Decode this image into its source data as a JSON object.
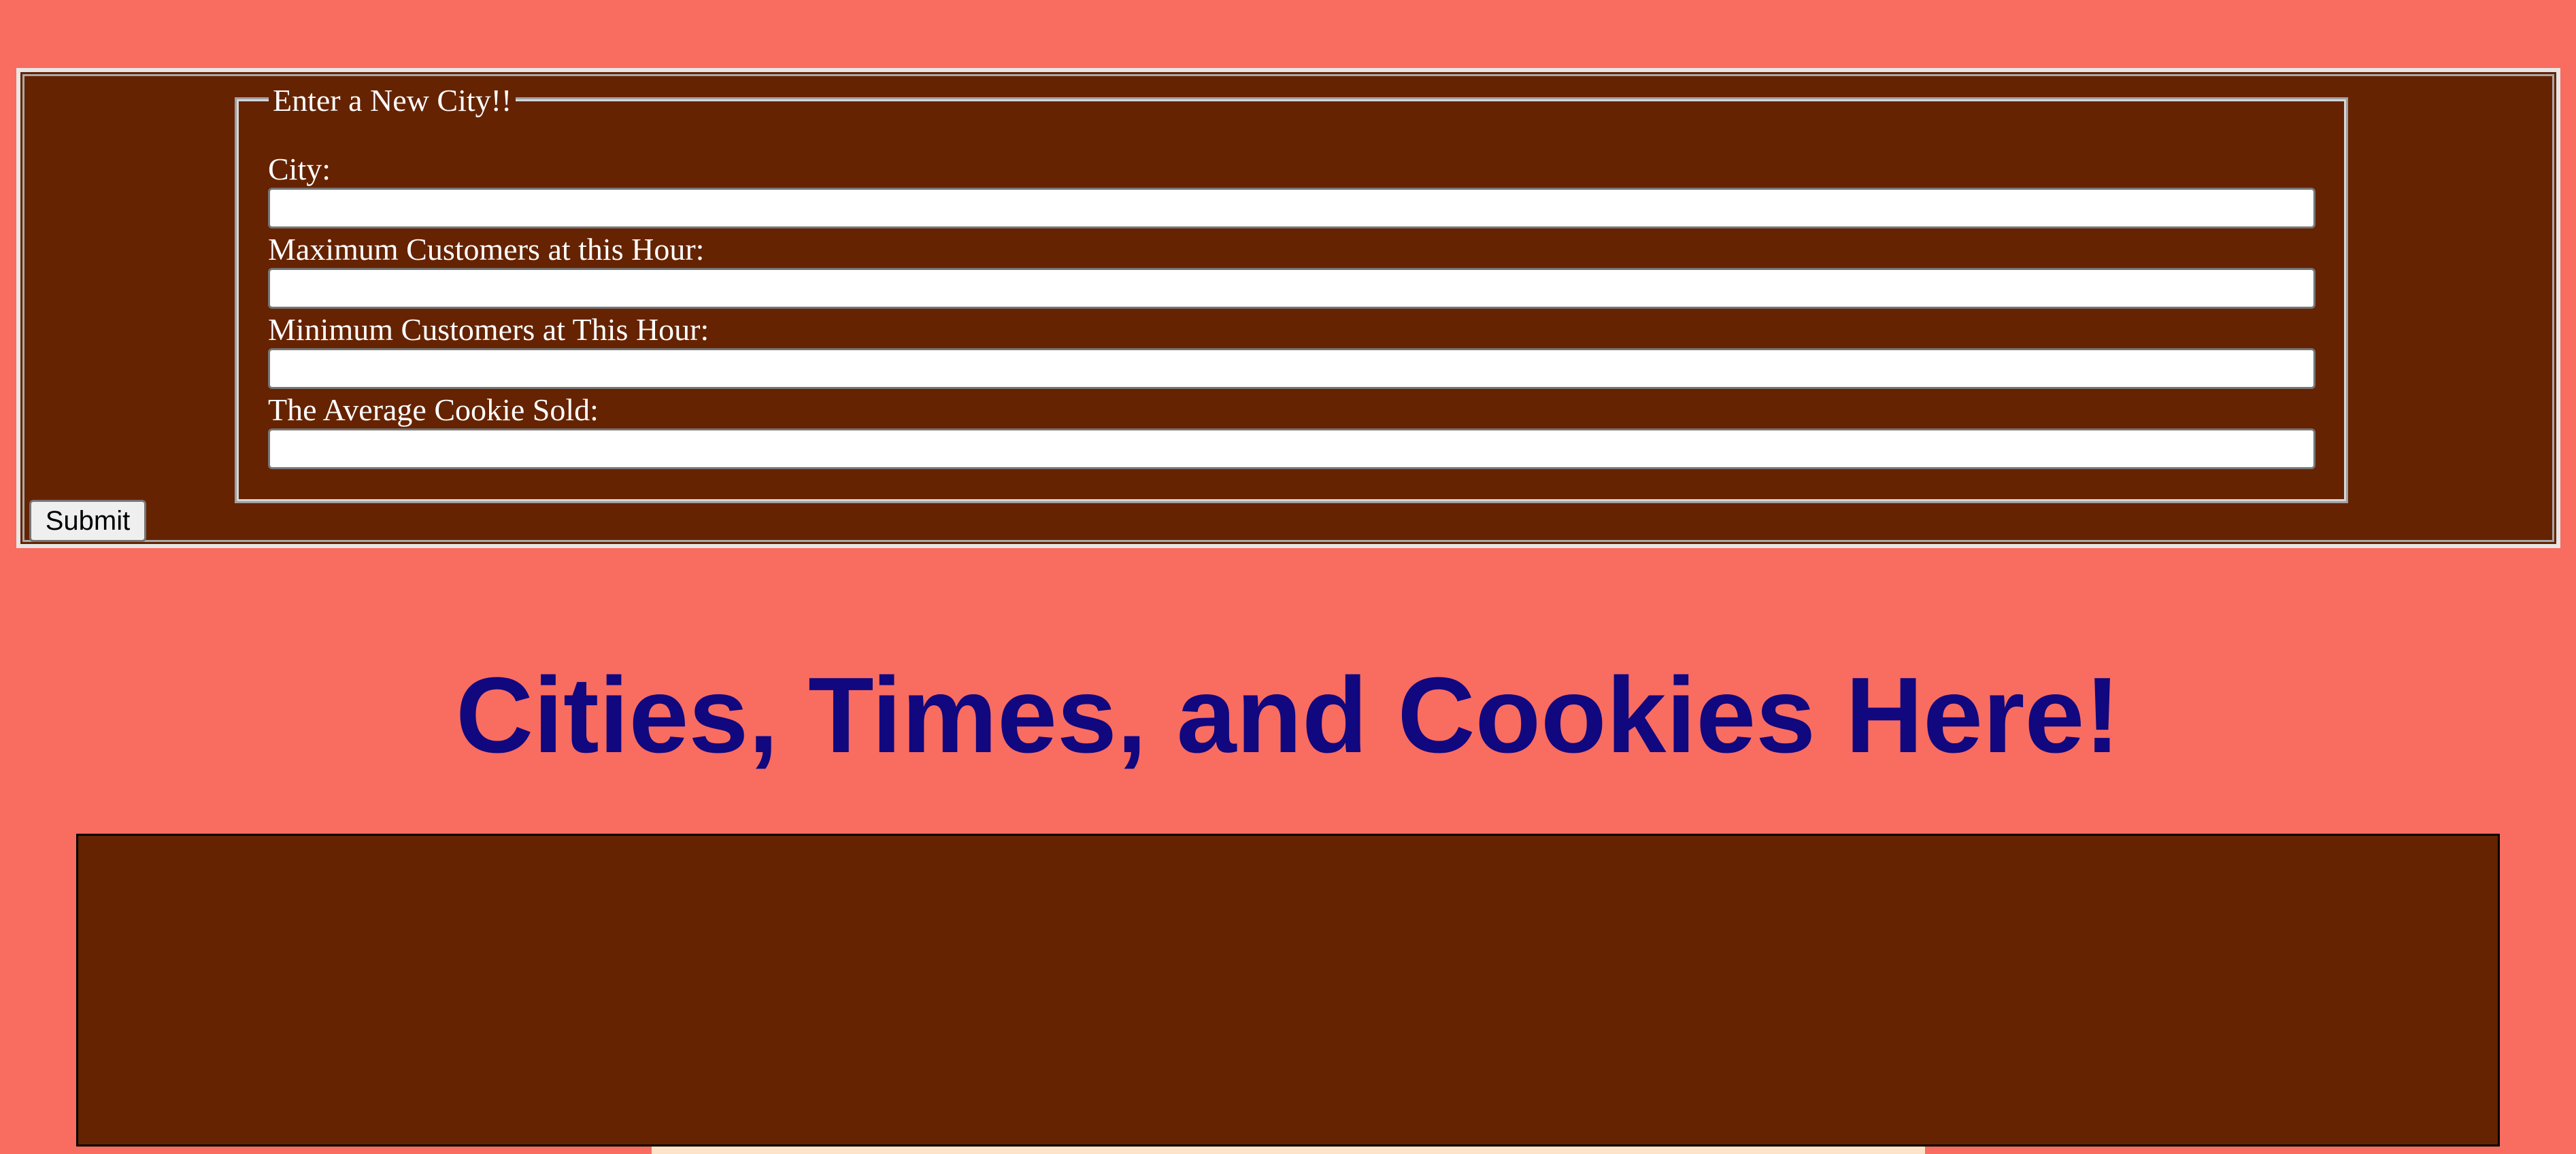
{
  "form": {
    "legend": "Enter a New City!!",
    "fields": [
      {
        "label": "City:",
        "value": "",
        "placeholder": ""
      },
      {
        "label": "Maximum Customers at this Hour:",
        "value": "",
        "placeholder": ""
      },
      {
        "label": "Minimum Customers at This Hour:",
        "value": "",
        "placeholder": ""
      },
      {
        "label": "The Average Cookie Sold:",
        "value": "",
        "placeholder": ""
      }
    ],
    "submit_label": "Submit"
  },
  "page": {
    "title": "Cities, Times, and Cookies Here!"
  },
  "colors": {
    "page_background": "#f96c60",
    "panel_background": "#652301",
    "title_color": "#11077f",
    "strip_color": "#fde3c8"
  }
}
